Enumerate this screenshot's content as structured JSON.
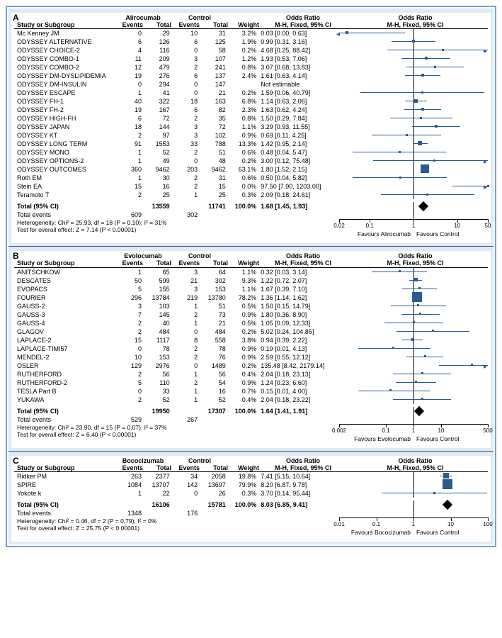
{
  "panels": [
    {
      "id": "A",
      "drug": "Alirocumab",
      "control": "Control",
      "or_header1": "Odds Ratio",
      "or_header2": "M-H, Fixed, 95% CI",
      "forest_header1": "Odds Ratio",
      "forest_header2": "M-H, Fixed, 95% CI",
      "axis": {
        "min": 0.02,
        "max": 50,
        "ticks": [
          0.02,
          0.1,
          1,
          10,
          50
        ]
      },
      "favours_l": "Favours Alirocumab",
      "favours_r": "Favours Control",
      "rows": [
        {
          "study": "Mc Kenney JM",
          "e1": 0,
          "t1": 29,
          "e2": 10,
          "t2": 31,
          "w": "3.2%",
          "or": "0.03 [0.00, 0.63]",
          "pt": 0.03,
          "lo": 0.001,
          "hi": 0.63,
          "arrow_l": true,
          "box": 4
        },
        {
          "study": "ODYSSEY ALTERNATIVE",
          "e1": 6,
          "t1": 126,
          "e2": 6,
          "t2": 125,
          "w": "1.9%",
          "or": "0.99 [0.31, 3.16]",
          "pt": 0.99,
          "lo": 0.31,
          "hi": 3.16,
          "box": 4
        },
        {
          "study": "ODYSSEY CHOICE-2",
          "e1": 4,
          "t1": 116,
          "e2": 0,
          "t2": 58,
          "w": "0.2%",
          "or": "4.68 [0.25, 88.42]",
          "pt": 4.68,
          "lo": 0.25,
          "hi": 88.42,
          "arrow_r": true,
          "box": 3
        },
        {
          "study": "ODYSSEY COMBO-1",
          "e1": 11,
          "t1": 209,
          "e2": 3,
          "t2": 107,
          "w": "1.2%",
          "or": "1.93 [0.53, 7.06]",
          "pt": 1.93,
          "lo": 0.53,
          "hi": 7.06,
          "box": 4
        },
        {
          "study": "ODYSSEY COMBO-2",
          "e1": 12,
          "t1": 479,
          "e2": 2,
          "t2": 241,
          "w": "0.8%",
          "or": "3.07 [0.68, 13.83]",
          "pt": 3.07,
          "lo": 0.68,
          "hi": 13.83,
          "box": 3
        },
        {
          "study": "ODYSSEY DM-DYSLIPIDEMIA",
          "e1": 19,
          "t1": 276,
          "e2": 6,
          "t2": 137,
          "w": "2.4%",
          "or": "1.61 [0.63, 4.14]",
          "pt": 1.61,
          "lo": 0.63,
          "hi": 4.14,
          "box": 4
        },
        {
          "study": "ODYSSEY DM-INSULIN",
          "e1": 0,
          "t1": 294,
          "e2": 0,
          "t2": 147,
          "w": "",
          "or": "Not estimable",
          "ne": true
        },
        {
          "study": "ODYSSEY ESCAPE",
          "e1": 1,
          "t1": 41,
          "e2": 0,
          "t2": 21,
          "w": "0.2%",
          "or": "1.59 [0.06, 40.79]",
          "pt": 1.59,
          "lo": 0.06,
          "hi": 40.79,
          "box": 3
        },
        {
          "study": "ODYSSEY FH-1",
          "e1": 40,
          "t1": 322,
          "e2": 18,
          "t2": 163,
          "w": "6.8%",
          "or": "1.14 [0.63, 2.06]",
          "pt": 1.14,
          "lo": 0.63,
          "hi": 2.06,
          "box": 5
        },
        {
          "study": "ODYSSEY FH-2",
          "e1": 19,
          "t1": 167,
          "e2": 6,
          "t2": 82,
          "w": "2.3%",
          "or": "1.63 [0.62, 4.24]",
          "pt": 1.63,
          "lo": 0.62,
          "hi": 4.24,
          "box": 4
        },
        {
          "study": "ODYSSEY HIGH-FH",
          "e1": 6,
          "t1": 72,
          "e2": 2,
          "t2": 35,
          "w": "0.8%",
          "or": "1.50 [0.29, 7.84]",
          "pt": 1.5,
          "lo": 0.29,
          "hi": 7.84,
          "box": 3
        },
        {
          "study": "ODYSSEY JAPAN",
          "e1": 18,
          "t1": 144,
          "e2": 3,
          "t2": 72,
          "w": "1.1%",
          "or": "3.29 [0.93, 11.55]",
          "pt": 3.29,
          "lo": 0.93,
          "hi": 11.55,
          "box": 4
        },
        {
          "study": "ODYSSEY KT",
          "e1": 2,
          "t1": 97,
          "e2": 3,
          "t2": 102,
          "w": "0.9%",
          "or": "0.69 [0.11, 4.25]",
          "pt": 0.69,
          "lo": 0.11,
          "hi": 4.25,
          "box": 3
        },
        {
          "study": "ODYSSEY LONG TERM",
          "e1": 91,
          "t1": 1553,
          "e2": 33,
          "t2": 788,
          "w": "13.3%",
          "or": "1.42 [0.95, 2.14]",
          "pt": 1.42,
          "lo": 0.95,
          "hi": 2.14,
          "box": 6
        },
        {
          "study": "ODYSSEY MONO",
          "e1": 1,
          "t1": 52,
          "e2": 2,
          "t2": 51,
          "w": "0.6%",
          "or": "0.48 [0.04, 5.47]",
          "pt": 0.48,
          "lo": 0.04,
          "hi": 5.47,
          "box": 3
        },
        {
          "study": "ODYSSEY OPTIONS-2",
          "e1": 1,
          "t1": 49,
          "e2": 0,
          "t2": 48,
          "w": "0.2%",
          "or": "3.00 [0.12, 75.48]",
          "pt": 3.0,
          "lo": 0.12,
          "hi": 75.48,
          "arrow_r": true,
          "box": 3
        },
        {
          "study": "ODYSSEY OUTCOMES",
          "e1": 360,
          "t1": 9462,
          "e2": 203,
          "t2": 9462,
          "w": "63.1%",
          "or": "1.80 [1.52, 2.15]",
          "pt": 1.8,
          "lo": 1.52,
          "hi": 2.15,
          "box": 12
        },
        {
          "study": "Roth EM",
          "e1": 1,
          "t1": 30,
          "e2": 2,
          "t2": 31,
          "w": "0.6%",
          "or": "0.50 [0.04, 5.82]",
          "pt": 0.5,
          "lo": 0.04,
          "hi": 5.82,
          "box": 3
        },
        {
          "study": "Stein EA",
          "e1": 15,
          "t1": 16,
          "e2": 2,
          "t2": 15,
          "w": "0.0%",
          "or": "97.50 [7.90, 1203.00]",
          "pt": 97.5,
          "lo": 7.9,
          "hi": 1203,
          "arrow_r": true,
          "box": 3
        },
        {
          "study": "Teramoto T",
          "e1": 2,
          "t1": 25,
          "e2": 1,
          "t2": 25,
          "w": "0.3%",
          "or": "2.09 [0.18, 24.61]",
          "pt": 2.09,
          "lo": 0.18,
          "hi": 24.61,
          "box": 3
        }
      ],
      "total": {
        "t1": 13559,
        "t2": 11741,
        "w": "100.0%",
        "or": "1.68 [1.45, 1.93]",
        "pt": 1.68
      },
      "total_events": {
        "e1": 609,
        "e2": 302
      },
      "het": "Heterogeneity: Chi² = 25.93, df = 18 (P = 0.10); I² = 31%",
      "eff": "Test for overall effect: Z = 7.14 (P < 0.00001)"
    },
    {
      "id": "B",
      "drug": "Evolocumab",
      "control": "Control",
      "or_header1": "Odds Ratio",
      "or_header2": "M-H, Fixed, 95% CI",
      "forest_header1": "Odds Ratio",
      "forest_header2": "M-H, Fixed, 95% CI",
      "axis": {
        "min": 0.002,
        "max": 500,
        "ticks": [
          0.002,
          0.1,
          1,
          10,
          500
        ]
      },
      "favours_l": "Favours Evolocumab",
      "favours_r": "Favours Control",
      "rows": [
        {
          "study": "ANITSCHKOW",
          "e1": 1,
          "t1": 65,
          "e2": 3,
          "t2": 64,
          "w": "1.1%",
          "or": "0.32 [0.03, 3.14]",
          "pt": 0.32,
          "lo": 0.03,
          "hi": 3.14,
          "box": 3
        },
        {
          "study": "DESCATES",
          "e1": 50,
          "t1": 599,
          "e2": 21,
          "t2": 302,
          "w": "9.3%",
          "or": "1.22 [0.72, 2.07]",
          "pt": 1.22,
          "lo": 0.72,
          "hi": 2.07,
          "box": 5
        },
        {
          "study": "EVOPACS",
          "e1": 5,
          "t1": 155,
          "e2": 3,
          "t2": 153,
          "w": "1.1%",
          "or": "1.67 [0.39, 7.10]",
          "pt": 1.67,
          "lo": 0.39,
          "hi": 7.1,
          "box": 3
        },
        {
          "study": "FOURIER",
          "e1": 296,
          "t1": 13784,
          "e2": 219,
          "t2": 13780,
          "w": "78.2%",
          "or": "1.36 [1.14, 1.62]",
          "pt": 1.36,
          "lo": 1.14,
          "hi": 1.62,
          "box": 14
        },
        {
          "study": "GAUSS-2",
          "e1": 3,
          "t1": 103,
          "e2": 1,
          "t2": 51,
          "w": "0.5%",
          "or": "1.50 [0.15, 14.79]",
          "pt": 1.5,
          "lo": 0.15,
          "hi": 14.79,
          "box": 3
        },
        {
          "study": "GAUSS-3",
          "e1": 7,
          "t1": 145,
          "e2": 2,
          "t2": 73,
          "w": "0.9%",
          "or": "1.80 [0.36, 8.90]",
          "pt": 1.8,
          "lo": 0.36,
          "hi": 8.9,
          "box": 3
        },
        {
          "study": "GAUSS-4",
          "e1": 2,
          "t1": 40,
          "e2": 1,
          "t2": 21,
          "w": "0.5%",
          "or": "1.05 [0.09, 12.33]",
          "pt": 1.05,
          "lo": 0.09,
          "hi": 12.33,
          "box": 3
        },
        {
          "study": "GLAGOV",
          "e1": 2,
          "t1": 484,
          "e2": 0,
          "t2": 484,
          "w": "0.2%",
          "or": "5.02 [0.24, 104.85]",
          "pt": 5.02,
          "lo": 0.24,
          "hi": 104.85,
          "box": 3
        },
        {
          "study": "LAPLACE-2",
          "e1": 15,
          "t1": 1117,
          "e2": 8,
          "t2": 558,
          "w": "3.8%",
          "or": "0.94 [0.39, 2.22]",
          "pt": 0.94,
          "lo": 0.39,
          "hi": 2.22,
          "box": 4
        },
        {
          "study": "LAPLACE-TIMI57",
          "e1": 0,
          "t1": 78,
          "e2": 2,
          "t2": 78,
          "w": "0.9%",
          "or": "0.19 [0.01, 4.13]",
          "pt": 0.19,
          "lo": 0.01,
          "hi": 4.13,
          "box": 3
        },
        {
          "study": "MENDEL-2",
          "e1": 10,
          "t1": 153,
          "e2": 2,
          "t2": 76,
          "w": "0.9%",
          "or": "2.59 [0.55, 12.12]",
          "pt": 2.59,
          "lo": 0.55,
          "hi": 12.12,
          "box": 3
        },
        {
          "study": "OSLER",
          "e1": 129,
          "t1": 2976,
          "e2": 0,
          "t2": 1489,
          "w": "0.2%",
          "or": "135.48 [8.42, 2179.14]",
          "pt": 135.48,
          "lo": 8.42,
          "hi": 2179,
          "arrow_r": true,
          "box": 3
        },
        {
          "study": "RUTHERFORD",
          "e1": 2,
          "t1": 56,
          "e2": 1,
          "t2": 56,
          "w": "0.4%",
          "or": "2.04 [0.18, 23.13]",
          "pt": 2.04,
          "lo": 0.18,
          "hi": 23.13,
          "box": 3
        },
        {
          "study": "RUTHERFORD-2",
          "e1": 5,
          "t1": 110,
          "e2": 2,
          "t2": 54,
          "w": "0.9%",
          "or": "1.24 [0.23, 6.60]",
          "pt": 1.24,
          "lo": 0.23,
          "hi": 6.6,
          "box": 3
        },
        {
          "study": "TESLA Part B",
          "e1": 0,
          "t1": 33,
          "e2": 1,
          "t2": 16,
          "w": "0.7%",
          "or": "0.15 [0.01, 4.00]",
          "pt": 0.15,
          "lo": 0.01,
          "hi": 4.0,
          "box": 3
        },
        {
          "study": "YUKAWA",
          "e1": 2,
          "t1": 52,
          "e2": 1,
          "t2": 52,
          "w": "0.4%",
          "or": "2.04 [0.18, 23.22]",
          "pt": 2.04,
          "lo": 0.18,
          "hi": 23.22,
          "box": 3
        }
      ],
      "total": {
        "t1": 19950,
        "t2": 17307,
        "w": "100.0%",
        "or": "1.64 [1.41, 1.91]",
        "pt": 1.64
      },
      "total_events": {
        "e1": 529,
        "e2": 267
      },
      "het": "Heterogeneity: Chi² = 23.90, df = 15 (P = 0.07); I² = 37%",
      "eff": "Test for overall effect: Z = 6.40 (P < 0.00001)"
    },
    {
      "id": "C",
      "drug": "Bococizumab",
      "control": "Control",
      "or_header1": "Odds Ratio",
      "or_header2": "M-H, Fixed, 95% CI",
      "forest_header1": "Odds Ratio",
      "forest_header2": "M-H, Fixed, 95% CI",
      "axis": {
        "min": 0.01,
        "max": 100,
        "ticks": [
          0.01,
          0.1,
          1,
          10,
          100
        ]
      },
      "favours_l": "Favours Bococizumab",
      "favours_r": "Favours Control",
      "rows": [
        {
          "study": "Ridker PM",
          "e1": 263,
          "t1": 2377,
          "e2": 34,
          "t2": 2058,
          "w": "19.8%",
          "or": "7.41 [5.15, 10.64]",
          "pt": 7.41,
          "lo": 5.15,
          "hi": 10.64,
          "box": 8
        },
        {
          "study": "SPIRE",
          "e1": 1084,
          "t1": 13707,
          "e2": 142,
          "t2": 13697,
          "w": "79.9%",
          "or": "8.20 [6.87, 9.78]",
          "pt": 8.2,
          "lo": 6.87,
          "hi": 9.78,
          "box": 14
        },
        {
          "study": "Yokote k",
          "e1": 1,
          "t1": 22,
          "e2": 0,
          "t2": 26,
          "w": "0.3%",
          "or": "3.70 [0.14, 95.44]",
          "pt": 3.7,
          "lo": 0.14,
          "hi": 95.44,
          "box": 3
        }
      ],
      "total": {
        "t1": 16106,
        "t2": 15781,
        "w": "100.0%",
        "or": "8.03 [6.85, 9.41]",
        "pt": 8.03
      },
      "total_events": {
        "e1": 1348,
        "e2": 176
      },
      "het": "Heterogeneity: Chi² = 0.46, df = 2 (P = 0.79); I² = 0%",
      "eff": "Test for overall effect: Z = 25.75 (P < 0.00001)"
    }
  ],
  "labels": {
    "study": "Study or Subgroup",
    "events": "Events",
    "total_col": "Total",
    "weight": "Weight",
    "total_ci": "Total (95% CI)",
    "total_events": "Total events"
  },
  "colors": {
    "border": "#6ea5d8",
    "box": "#2b5a8f",
    "panel_bg": "#dfeaf4"
  }
}
